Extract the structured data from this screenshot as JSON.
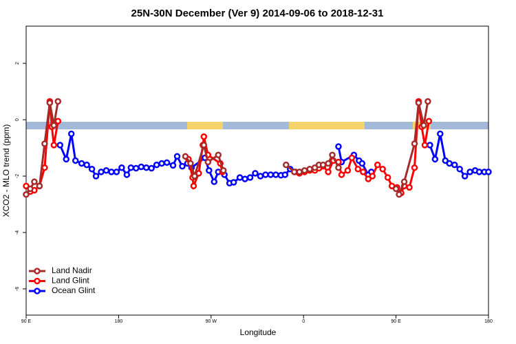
{
  "chart_data": {
    "type": "line",
    "title": "25N-30N December (Ver 9)   2014-09-06 to 2018-12-31",
    "x_label": "Longitude",
    "y_label": "XCO2 - MLO trend (ppm)",
    "xlim": [
      90,
      540
    ],
    "ylim": [
      -6.93,
      3.32
    ],
    "xticks": [
      {
        "value": 90,
        "label": "90 E"
      },
      180,
      {
        "value": 270,
        "label": "90 W"
      },
      {
        "value": 360,
        "label": "0"
      },
      {
        "value": 450,
        "label": "90 E"
      },
      {
        "value": 540,
        "label": "180"
      }
    ],
    "yticks": [
      -6,
      -4,
      -2,
      0,
      2
    ],
    "legend": "bottom-left",
    "series": [
      {
        "name": "Land Nadir",
        "color": "#a52a2a",
        "x": [
          90,
          94,
          98,
          103,
          108,
          113,
          117,
          121,
          null,
          245,
          250,
          254,
          263,
          267,
          277,
          282,
          null,
          343,
          351,
          356,
          361,
          366,
          371,
          375,
          379,
          384,
          388,
          394,
          null,
          450,
          453,
          458,
          468,
          472,
          477,
          481
        ],
        "values": [
          -2.65,
          -2.45,
          -2.2,
          -2.35,
          -0.85,
          0.6,
          -0.2,
          0.65,
          null,
          -1.3,
          -1.55,
          -2.0,
          -0.9,
          -1.5,
          -1.25,
          -1.8,
          null,
          -1.6,
          -1.85,
          -1.85,
          -1.8,
          -1.75,
          -1.7,
          -1.6,
          -1.6,
          -1.55,
          -1.25,
          -1.7,
          null,
          -2.45,
          -2.65,
          -2.2,
          -0.85,
          0.6,
          -0.2,
          0.65
        ]
      },
      {
        "name": "Land Glint",
        "color": "#ff0000",
        "x": [
          90,
          94,
          98,
          103,
          108,
          113,
          115,
          117,
          121,
          null,
          248,
          252,
          253,
          258,
          262,
          263,
          267,
          279,
          281,
          null,
          352,
          356,
          361,
          366,
          371,
          375,
          379,
          384,
          389,
          394,
          397,
          403,
          407,
          413,
          418,
          423,
          427,
          432,
          437,
          442,
          446,
          451,
          455,
          458,
          463,
          468,
          472,
          475,
          478,
          482
        ],
        "values": [
          -2.35,
          -2.55,
          -2.5,
          -2.35,
          -1.7,
          0.65,
          -0.25,
          -0.9,
          -0.05,
          null,
          -1.4,
          -2.05,
          -2.35,
          -1.9,
          -0.9,
          -0.6,
          -1.25,
          -1.55,
          -1.85,
          null,
          -1.85,
          -1.9,
          -1.85,
          -1.8,
          -1.8,
          -1.72,
          -1.65,
          -1.85,
          -1.45,
          -1.5,
          -1.95,
          -1.8,
          -1.35,
          -1.75,
          -1.85,
          -2.1,
          -2.0,
          -1.6,
          -1.75,
          -2.05,
          -2.35,
          -2.4,
          -2.6,
          -2.35,
          -2.4,
          -1.7,
          0.65,
          -0.25,
          -0.9,
          -0.05
        ]
      },
      {
        "name": "Ocean Glint",
        "color": "#0000ff",
        "x": [
          123,
          129,
          134,
          138,
          144,
          149,
          154,
          158,
          163,
          168,
          173,
          178,
          183,
          188,
          192,
          197,
          202,
          207,
          212,
          217,
          222,
          227,
          233,
          237,
          242,
          247,
          251,
          264,
          268,
          273,
          277,
          283,
          288,
          292,
          298,
          303,
          308,
          313,
          318,
          323,
          328,
          333,
          338,
          342,
          347,
          null,
          394,
          397,
          409,
          414,
          417,
          423,
          426,
          null,
          483,
          488,
          493,
          498,
          502,
          507,
          512,
          517,
          522,
          527,
          531,
          536,
          540
        ],
        "values": [
          -0.9,
          -1.4,
          -0.5,
          -1.45,
          -1.55,
          -1.6,
          -1.75,
          -2.0,
          -1.85,
          -1.8,
          -1.85,
          -1.85,
          -1.7,
          -1.95,
          -1.7,
          -1.72,
          -1.67,
          -1.7,
          -1.72,
          -1.6,
          -1.55,
          -1.52,
          -1.62,
          -1.3,
          -1.65,
          -1.55,
          -1.7,
          -1.35,
          -1.8,
          -2.2,
          -1.85,
          -1.95,
          -2.25,
          -2.22,
          -2.05,
          -2.1,
          -2.05,
          -1.9,
          -2.0,
          -1.95,
          -1.95,
          -1.95,
          -1.97,
          -1.95,
          -1.75,
          null,
          -0.95,
          -1.5,
          -1.25,
          -1.45,
          -1.55,
          -1.95,
          -1.85,
          null,
          -0.9,
          -1.4,
          -0.5,
          -1.45,
          -1.55,
          -1.6,
          -1.75,
          -2.0,
          -1.85,
          -1.8,
          -1.85,
          -1.85,
          -1.85
        ]
      }
    ]
  }
}
